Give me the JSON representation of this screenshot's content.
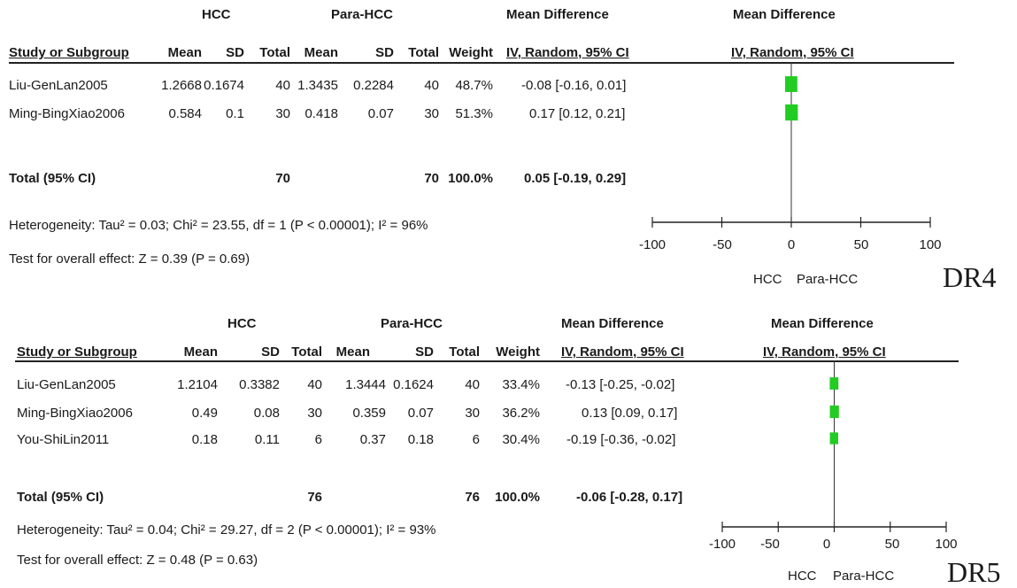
{
  "chart_data": [
    {
      "type": "forest",
      "panel_label": "DR4",
      "group_headers": {
        "hcc": "HCC",
        "para": "Para-HCC",
        "md_col": "Mean Difference",
        "md_plot": "Mean Difference"
      },
      "columns": {
        "study": "Study or Subgroup",
        "mean1": "Mean",
        "sd1": "SD",
        "total1": "Total",
        "mean2": "Mean",
        "sd2": "SD",
        "total2": "Total",
        "weight": "Weight",
        "ci": "IV, Random, 95% CI",
        "plot": "IV, Random, 95% CI"
      },
      "studies": [
        {
          "name": "Liu-GenLan2005",
          "mean1": "1.2668",
          "sd1": "0.1674",
          "total1": "40",
          "mean2": "1.3435",
          "sd2": "0.2284",
          "total2": "40",
          "weight": "48.7%",
          "ci_text": "-0.08 [-0.16, 0.01]",
          "md": -0.08,
          "lo": -0.16,
          "hi": 0.01,
          "w": 48.7
        },
        {
          "name": "Ming-BingXiao2006",
          "mean1": "0.584",
          "sd1": "0.1",
          "total1": "30",
          "mean2": "0.418",
          "sd2": "0.07",
          "total2": "30",
          "weight": "51.3%",
          "ci_text": "0.17 [0.12, 0.21]",
          "md": 0.17,
          "lo": 0.12,
          "hi": 0.21,
          "w": 51.3
        }
      ],
      "total": {
        "label": "Total (95% CI)",
        "total1": "70",
        "total2": "70",
        "weight": "100.0%",
        "ci_text": "0.05 [-0.19, 0.29]",
        "md": 0.05,
        "lo": -0.19,
        "hi": 0.29
      },
      "heterogeneity": "Heterogeneity: Tau² = 0.03; Chi² = 23.55, df = 1 (P < 0.00001); I² = 96%",
      "overall_effect": "Test for overall effect: Z = 0.39 (P = 0.69)",
      "axis": {
        "ticks": [
          "-100",
          "-50",
          "0",
          "50",
          "100"
        ],
        "tick_values": [
          -100,
          -50,
          0,
          50,
          100
        ],
        "range": [
          -100,
          100
        ],
        "left_label": "HCC",
        "right_label": "Para-HCC"
      },
      "square_color": "#22cc22"
    },
    {
      "type": "forest",
      "panel_label": "DR5",
      "group_headers": {
        "hcc": "HCC",
        "para": "Para-HCC",
        "md_col": "Mean Difference",
        "md_plot": "Mean Difference"
      },
      "columns": {
        "study": "Study or Subgroup",
        "mean1": "Mean",
        "sd1": "SD",
        "total1": "Total",
        "mean2": "Mean",
        "sd2": "SD",
        "total2": "Total",
        "weight": "Weight",
        "ci": "IV, Random, 95% CI",
        "plot": "IV, Random, 95% CI"
      },
      "studies": [
        {
          "name": "Liu-GenLan2005",
          "mean1": "1.2104",
          "sd1": "0.3382",
          "total1": "40",
          "mean2": "1.3444",
          "sd2": "0.1624",
          "total2": "40",
          "weight": "33.4%",
          "ci_text": "-0.13 [-0.25, -0.02]",
          "md": -0.13,
          "lo": -0.25,
          "hi": -0.02,
          "w": 33.4
        },
        {
          "name": "Ming-BingXiao2006",
          "mean1": "0.49",
          "sd1": "0.08",
          "total1": "30",
          "mean2": "0.359",
          "sd2": "0.07",
          "total2": "30",
          "weight": "36.2%",
          "ci_text": "0.13 [0.09, 0.17]",
          "md": 0.13,
          "lo": 0.09,
          "hi": 0.17,
          "w": 36.2
        },
        {
          "name": "You-ShiLin2011",
          "mean1": "0.18",
          "sd1": "0.11",
          "total1": "6",
          "mean2": "0.37",
          "sd2": "0.18",
          "total2": "6",
          "weight": "30.4%",
          "ci_text": "-0.19 [-0.36, -0.02]",
          "md": -0.19,
          "lo": -0.36,
          "hi": -0.02,
          "w": 30.4
        }
      ],
      "total": {
        "label": "Total (95% CI)",
        "total1": "76",
        "total2": "76",
        "weight": "100.0%",
        "ci_text": "-0.06 [-0.28, 0.17]",
        "md": -0.06,
        "lo": -0.28,
        "hi": 0.17
      },
      "heterogeneity": "Heterogeneity: Tau² = 0.04; Chi² = 29.27, df = 2 (P < 0.00001); I² = 93%",
      "overall_effect": "Test for overall effect: Z = 0.48 (P = 0.63)",
      "axis": {
        "ticks": [
          "-100",
          "-50",
          "0",
          "50",
          "100"
        ],
        "tick_values": [
          -100,
          -50,
          0,
          50,
          100
        ],
        "range": [
          -100,
          100
        ],
        "left_label": "HCC",
        "right_label": "Para-HCC"
      },
      "square_color": "#22cc22"
    }
  ]
}
